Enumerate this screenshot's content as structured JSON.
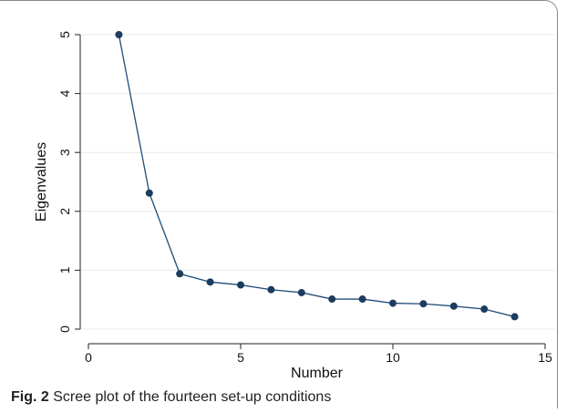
{
  "chart_data": {
    "type": "line",
    "xlabel": "Number",
    "ylabel": "Eigenvalues",
    "xlim": [
      0,
      15
    ],
    "ylim": [
      0,
      5
    ],
    "xticks": [
      0,
      5,
      10,
      15
    ],
    "yticks": [
      0,
      1,
      2,
      3,
      4,
      5
    ],
    "grid": "horizontal",
    "x": [
      1,
      2,
      3,
      4,
      5,
      6,
      7,
      8,
      9,
      10,
      11,
      12,
      13,
      14
    ],
    "values": [
      5.0,
      2.31,
      0.94,
      0.8,
      0.75,
      0.67,
      0.62,
      0.51,
      0.51,
      0.44,
      0.43,
      0.39,
      0.34,
      0.21
    ],
    "line_color": "#1f4e79",
    "marker_color": "#1c3c5e"
  },
  "caption": {
    "label": "Fig. 2",
    "text": "Scree plot of the fourteen set-up conditions"
  }
}
